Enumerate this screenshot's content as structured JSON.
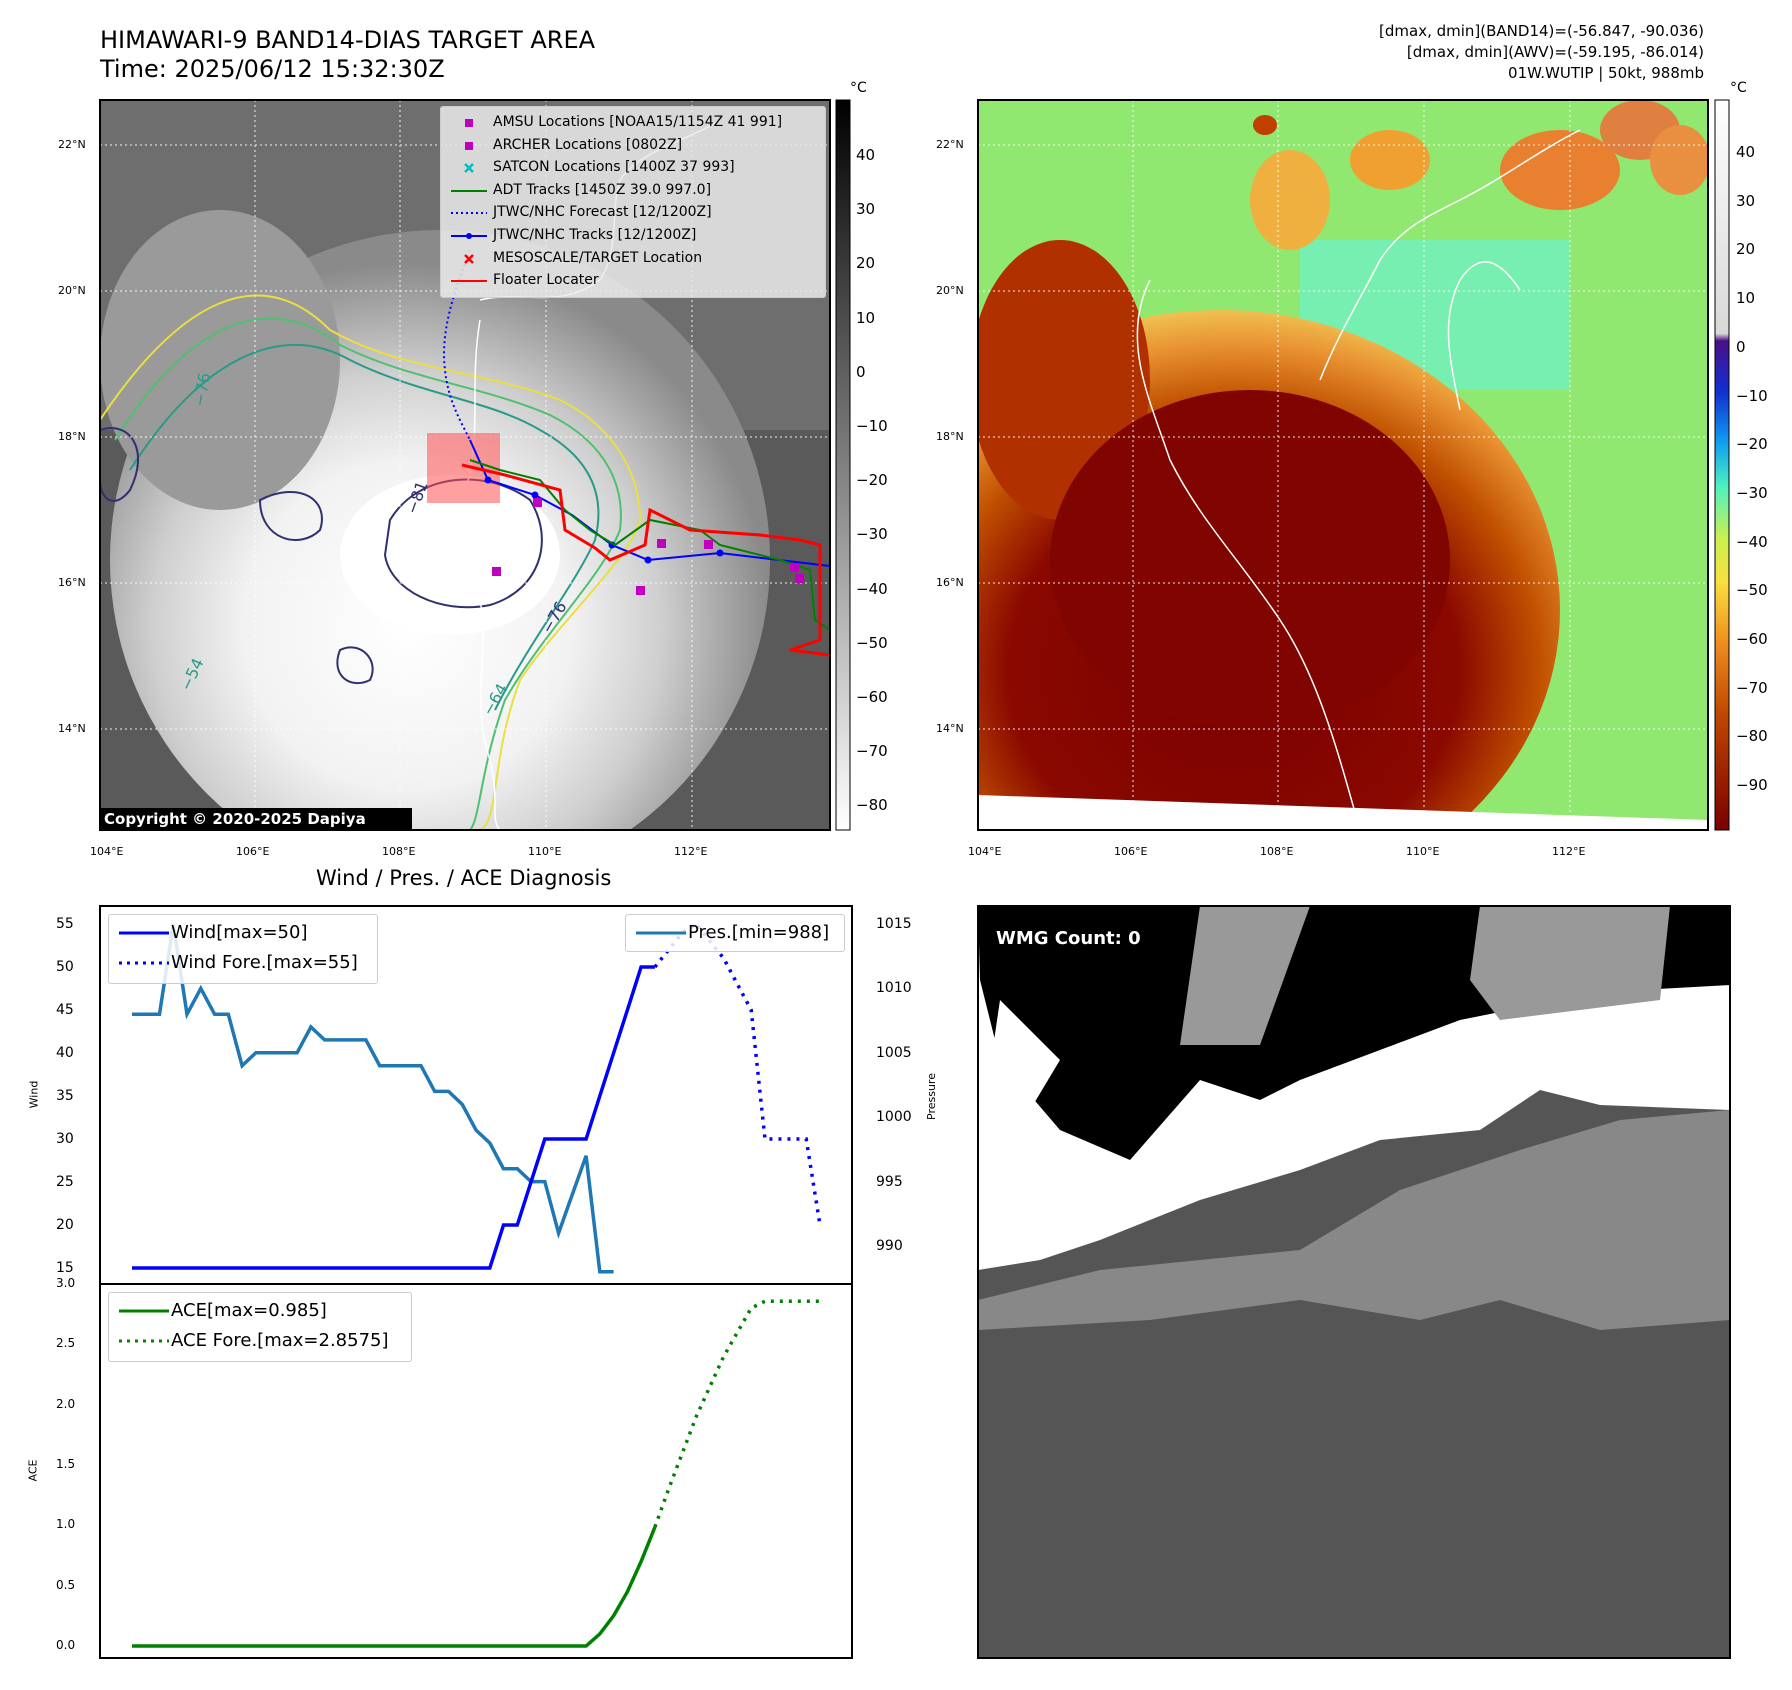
{
  "header": {
    "title_line1": "HIMAWARI-9 BAND14-DIAS TARGET AREA",
    "title_line2": "Time: 2025/06/12 15:32:30Z",
    "info_line1": "[dmax, dmin](BAND14)=(-56.847, -90.036)",
    "info_line2": "[dmax, dmin](AWV)=(-59.195, -86.014)",
    "info_line3": "01W.WUTIP | 50kt, 988mb"
  },
  "map_axes": {
    "lon_labels": [
      "104°E",
      "106°E",
      "108°E",
      "110°E",
      "112°E"
    ],
    "lat_labels": [
      "22°N",
      "20°N",
      "18°N",
      "16°N",
      "14°N"
    ]
  },
  "left_map": {
    "copyright": "Copyright © 2020-2025 Dapiya",
    "colorbar_unit": "°C",
    "colorbar_ticks": [
      "40",
      "30",
      "20",
      "10",
      "0",
      "−10",
      "−20",
      "−30",
      "−40",
      "−50",
      "−60",
      "−70",
      "−80"
    ],
    "contour_labels": [
      "−81",
      "−76",
      "−64",
      "−54",
      "−76"
    ],
    "legend": [
      {
        "label": "AMSU Locations [NOAA15/1154Z 41 991]",
        "marker": "square",
        "color": "#bf00bf"
      },
      {
        "label": "ARCHER Locations [0802Z]",
        "marker": "square",
        "color": "#bf00bf"
      },
      {
        "label": "SATCON Locations [1400Z 37 993]",
        "marker": "x",
        "color": "#00bfbf"
      },
      {
        "label": "ADT Tracks [1450Z 39.0 997.0]",
        "marker": "line",
        "color": "#008000"
      },
      {
        "label": "JTWC/NHC Forecast [12/1200Z]",
        "marker": "dotted",
        "color": "#0000ff"
      },
      {
        "label": "JTWC/NHC Tracks [12/1200Z]",
        "marker": "line-dot",
        "color": "#0000ff"
      },
      {
        "label": "MESOSCALE/TARGET Location",
        "marker": "x",
        "color": "#ff0000"
      },
      {
        "label": "Floater Locater",
        "marker": "line",
        "color": "#ff0000"
      }
    ]
  },
  "right_map": {
    "colorbar_unit": "°C",
    "colorbar_ticks": [
      "40",
      "30",
      "20",
      "10",
      "0",
      "−10",
      "−20",
      "−30",
      "−40",
      "−50",
      "−60",
      "−70",
      "−80",
      "−90"
    ]
  },
  "wind_panel": {
    "title": "Wind / Pres. / ACE Diagnosis",
    "ylabel_left": "Wind",
    "ylabel_right": "Pressure",
    "legend_wind": "Wind[max=50]",
    "legend_wind_fore": "Wind Fore.[max=55]",
    "legend_pres": "Pres.[min=988]",
    "wind_ticks": [
      "15",
      "20",
      "25",
      "30",
      "35",
      "40",
      "45",
      "50",
      "55"
    ],
    "pres_ticks": [
      "990",
      "995",
      "1000",
      "1005",
      "1010",
      "1015"
    ]
  },
  "ace_panel": {
    "ylabel": "ACE",
    "legend_ace": "ACE[max=0.985]",
    "legend_ace_fore": "ACE Fore.[max=2.8575]",
    "ticks": [
      "0.0",
      "0.5",
      "1.0",
      "1.5",
      "2.0",
      "2.5",
      "3.0"
    ]
  },
  "wmg_panel": {
    "label": "WMG Count: 0"
  },
  "colors": {
    "wind": "#0000ff",
    "pressure": "#1f77b4",
    "ace": "#008000",
    "floater": "#ff0000"
  },
  "chart_data": [
    {
      "type": "line",
      "title": "Wind / Pres. / ACE Diagnosis",
      "ylabel": "Wind",
      "ylim": [
        14,
        56
      ],
      "x": [
        0,
        1,
        2,
        3,
        4,
        5,
        6,
        7,
        8,
        9,
        10,
        11,
        12,
        13,
        14,
        15,
        16,
        17,
        18,
        19,
        20,
        21,
        22,
        23,
        24,
        25,
        26,
        27,
        28,
        29,
        30,
        31,
        32,
        33,
        34,
        35,
        36,
        37,
        38,
        39,
        40,
        41,
        42,
        43,
        44,
        45,
        46,
        47,
        48,
        49,
        50
      ],
      "series": [
        {
          "name": "Wind[max=50]",
          "values": [
            15,
            15,
            15,
            15,
            15,
            15,
            15,
            15,
            15,
            15,
            15,
            15,
            15,
            15,
            15,
            15,
            15,
            15,
            15,
            15,
            15,
            15,
            15,
            15,
            15,
            15,
            15,
            20,
            20,
            25,
            30,
            30,
            30,
            30,
            35,
            40,
            45,
            50,
            50,
            null,
            null,
            null,
            null,
            null,
            null,
            null,
            null,
            null,
            null,
            null,
            null
          ]
        },
        {
          "name": "Wind Fore.[max=55]",
          "values": [
            null,
            null,
            null,
            null,
            null,
            null,
            null,
            null,
            null,
            null,
            null,
            null,
            null,
            null,
            null,
            null,
            null,
            null,
            null,
            null,
            null,
            null,
            null,
            null,
            null,
            null,
            null,
            null,
            null,
            null,
            null,
            null,
            null,
            null,
            null,
            null,
            null,
            null,
            50,
            52,
            54,
            55,
            53,
            51,
            48,
            45,
            30,
            30,
            30,
            30,
            20
          ]
        }
      ]
    },
    {
      "type": "line",
      "ylabel": "Pressure",
      "ylim": [
        988,
        1016
      ],
      "x": [
        0,
        1,
        2,
        3,
        4,
        5,
        6,
        7,
        8,
        9,
        10,
        11,
        12,
        13,
        14,
        15,
        16,
        17,
        18,
        19,
        20,
        21,
        22,
        23,
        24,
        25,
        26,
        27,
        28,
        29,
        30,
        31,
        32,
        33,
        34,
        35,
        36,
        37,
        38
      ],
      "series": [
        {
          "name": "Pres.[min=988]",
          "values": [
            1008,
            1008,
            1008,
            1015,
            1008,
            1010,
            1008,
            1008,
            1004,
            1005,
            1005,
            1005,
            1005,
            1007,
            1006,
            1006,
            1006,
            1006,
            1004,
            1004,
            1004,
            1004,
            1002,
            1002,
            1001,
            999,
            998,
            996,
            996,
            995,
            995,
            991,
            994,
            997,
            988,
            988,
            null,
            null,
            null
          ]
        }
      ]
    },
    {
      "type": "line",
      "ylabel": "ACE",
      "ylim": [
        -0.1,
        3.0
      ],
      "x": [
        0,
        1,
        2,
        3,
        4,
        5,
        6,
        7,
        8,
        9,
        10,
        11,
        12,
        13,
        14,
        15,
        16,
        17,
        18,
        19,
        20,
        21,
        22,
        23,
        24,
        25,
        26,
        27,
        28,
        29,
        30,
        31,
        32,
        33,
        34,
        35,
        36,
        37,
        38,
        39,
        40,
        41,
        42,
        43,
        44,
        45,
        46,
        47,
        48,
        49,
        50
      ],
      "series": [
        {
          "name": "ACE[max=0.985]",
          "values": [
            0,
            0,
            0,
            0,
            0,
            0,
            0,
            0,
            0,
            0,
            0,
            0,
            0,
            0,
            0,
            0,
            0,
            0,
            0,
            0,
            0,
            0,
            0,
            0,
            0,
            0,
            0,
            0,
            0,
            0,
            0,
            0,
            0,
            0,
            0.1,
            0.25,
            0.45,
            0.7,
            0.985,
            null,
            null,
            null,
            null,
            null,
            null,
            null,
            null,
            null,
            null,
            null,
            null
          ]
        },
        {
          "name": "ACE Fore.[max=2.8575]",
          "values": [
            null,
            null,
            null,
            null,
            null,
            null,
            null,
            null,
            null,
            null,
            null,
            null,
            null,
            null,
            null,
            null,
            null,
            null,
            null,
            null,
            null,
            null,
            null,
            null,
            null,
            null,
            null,
            null,
            null,
            null,
            null,
            null,
            null,
            null,
            null,
            null,
            null,
            null,
            0.985,
            1.3,
            1.6,
            1.9,
            2.15,
            2.4,
            2.6,
            2.8,
            2.8575,
            2.8575,
            2.8575,
            2.8575,
            2.8575
          ]
        }
      ]
    }
  ]
}
